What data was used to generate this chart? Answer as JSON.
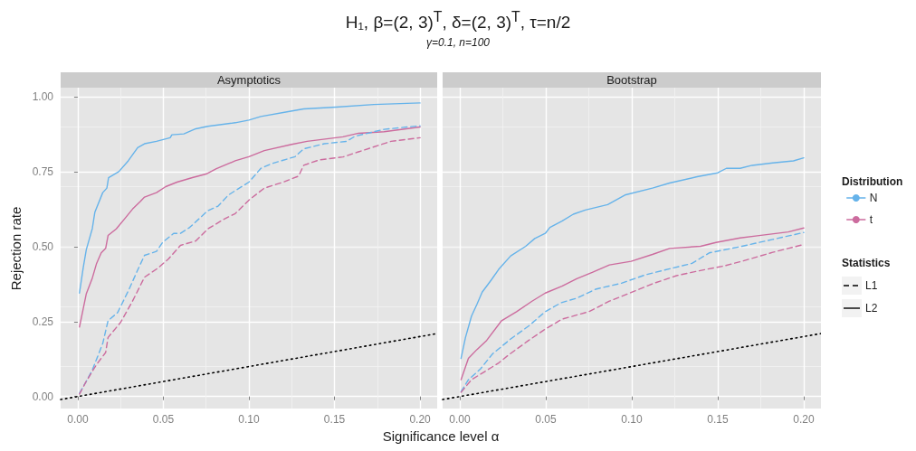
{
  "chart_data": [
    {
      "type": "line",
      "title": "Asymptotics",
      "xlabel": "Significance level α",
      "ylabel": "Rejection rate",
      "legend": "right",
      "legend_title": "Distribution",
      "annotations": [
        "H₁,  β=(2, 3)$^{T}$, δ=(2, 3)$^{T}$, τ=n/2",
        "γ=0.1, n=100",
        "Statistics",
        "L1",
        "L2"
      ],
      "xlim": [
        -0.01,
        0.21
      ],
      "ylim": [
        -0.04,
        1.03
      ],
      "xticks": [
        {
          "value": 0,
          "label": "0.00"
        },
        {
          "value": 0.05,
          "label": "0.05"
        },
        {
          "value": 0.1,
          "label": "0.10"
        },
        {
          "value": 0.15,
          "label": "0.15"
        },
        {
          "value": 0.2,
          "label": "0.20"
        }
      ],
      "yticks": [
        {
          "value": 0,
          "label": "0.00"
        },
        0.25,
        {
          "value": 0.5,
          "label": "0.50"
        },
        0.75,
        {
          "value": 1,
          "label": "1.00"
        }
      ],
      "grid": true,
      "marker": "none",
      "series": [
        {
          "name": "N",
          "color": "#66b3ea",
          "line_style": "solid",
          "x": [
            0.001,
            0.0032,
            0.005,
            0.0085,
            0.01,
            0.0146,
            0.017,
            0.018,
            0.024,
            0.0295,
            0.035,
            0.039,
            0.046,
            0.054,
            0.055,
            0.062,
            0.069,
            0.076,
            0.092,
            0.1,
            0.107,
            0.123,
            0.132,
            0.151,
            0.173,
            0.2
          ],
          "values": [
            0.345,
            0.43,
            0.49,
            0.56,
            0.615,
            0.68,
            0.695,
            0.73,
            0.75,
            0.786,
            0.83,
            0.843,
            0.851,
            0.863,
            0.873,
            0.876,
            0.893,
            0.901,
            0.913,
            0.922,
            0.934,
            0.95,
            0.959,
            0.965,
            0.974,
            0.979
          ]
        },
        {
          "name": "t",
          "color": "#cc6c9e",
          "line_style": "solid",
          "x": [
            0.001,
            0.0023,
            0.005,
            0.0084,
            0.011,
            0.0137,
            0.0163,
            0.0177,
            0.0225,
            0.0277,
            0.032,
            0.0365,
            0.039,
            0.046,
            0.0514,
            0.058,
            0.067,
            0.075,
            0.081,
            0.092,
            0.1,
            0.109,
            0.125,
            0.134,
            0.155,
            0.164,
            0.179,
            0.2
          ],
          "values": [
            0.232,
            0.268,
            0.343,
            0.393,
            0.444,
            0.479,
            0.494,
            0.537,
            0.559,
            0.595,
            0.625,
            0.65,
            0.665,
            0.68,
            0.7,
            0.715,
            0.73,
            0.742,
            0.76,
            0.786,
            0.8,
            0.82,
            0.841,
            0.851,
            0.866,
            0.878,
            0.883,
            0.899
          ]
        },
        {
          "color": "#66b3ea",
          "line_style": "dashed",
          "x": [
            0.001,
            0.005,
            0.0084,
            0.0146,
            0.0177,
            0.0233,
            0.03,
            0.0347,
            0.039,
            0.046,
            0.0496,
            0.056,
            0.06,
            0.0654,
            0.076,
            0.082,
            0.088,
            0.1,
            0.107,
            0.113,
            0.127,
            0.132,
            0.144,
            0.157,
            0.162,
            0.179,
            0.2
          ],
          "values": [
            0.011,
            0.051,
            0.087,
            0.177,
            0.253,
            0.28,
            0.358,
            0.418,
            0.471,
            0.484,
            0.514,
            0.544,
            0.544,
            0.564,
            0.62,
            0.635,
            0.672,
            0.715,
            0.761,
            0.776,
            0.8,
            0.826,
            0.843,
            0.851,
            0.868,
            0.891,
            0.903
          ]
        },
        {
          "color": "#cc6c9e",
          "line_style": "dashed",
          "x": [
            0.001,
            0.005,
            0.011,
            0.0163,
            0.0177,
            0.025,
            0.032,
            0.039,
            0.047,
            0.053,
            0.06,
            0.069,
            0.076,
            0.085,
            0.092,
            0.1,
            0.109,
            0.12,
            0.129,
            0.132,
            0.141,
            0.155,
            0.164,
            0.183,
            0.2
          ],
          "values": [
            0.008,
            0.051,
            0.107,
            0.147,
            0.197,
            0.247,
            0.318,
            0.398,
            0.429,
            0.459,
            0.504,
            0.519,
            0.559,
            0.59,
            0.61,
            0.655,
            0.695,
            0.715,
            0.735,
            0.771,
            0.789,
            0.799,
            0.816,
            0.851,
            0.863
          ]
        },
        {
          "color": "#000000",
          "line_style": "dotted",
          "x": [
            -0.01,
            0.21
          ],
          "values": [
            -0.01,
            0.21
          ]
        }
      ]
    },
    {
      "type": "line",
      "title": "Bootstrap",
      "tick_labels": "x",
      "xlim": [
        -0.01,
        0.21
      ],
      "ylim": [
        -0.04,
        1.03
      ],
      "xticks": [
        {
          "value": 0,
          "label": "0.00"
        },
        {
          "value": 0.05,
          "label": "0.05"
        },
        {
          "value": 0.1,
          "label": "0.10"
        },
        {
          "value": 0.15,
          "label": "0.15"
        },
        {
          "value": 0.2,
          "label": "0.20"
        }
      ],
      "yticks": [
        0,
        0.25,
        0.5,
        0.75,
        1
      ],
      "grid": true,
      "marker": "none",
      "series": [
        {
          "color": "#66b3ea",
          "line_style": "solid",
          "x": [
            0.0007,
            0.0033,
            0.0068,
            0.01,
            0.013,
            0.0182,
            0.0226,
            0.0296,
            0.0383,
            0.0436,
            0.0497,
            0.0524,
            0.0594,
            0.066,
            0.073,
            0.086,
            0.096,
            0.112,
            0.122,
            0.138,
            0.15,
            0.155,
            0.163,
            0.17,
            0.182,
            0.194,
            0.2
          ],
          "values": [
            0.127,
            0.197,
            0.268,
            0.308,
            0.348,
            0.388,
            0.424,
            0.469,
            0.501,
            0.527,
            0.544,
            0.564,
            0.585,
            0.608,
            0.622,
            0.64,
            0.672,
            0.695,
            0.712,
            0.733,
            0.746,
            0.761,
            0.761,
            0.771,
            0.779,
            0.786,
            0.796
          ]
        },
        {
          "color": "#cc6c9e",
          "line_style": "solid",
          "x": [
            0.0007,
            0.005,
            0.01,
            0.0156,
            0.0243,
            0.033,
            0.042,
            0.0497,
            0.0594,
            0.068,
            0.077,
            0.087,
            0.0996,
            0.112,
            0.122,
            0.14,
            0.149,
            0.163,
            0.173,
            0.191,
            0.2
          ],
          "values": [
            0.056,
            0.127,
            0.157,
            0.187,
            0.253,
            0.283,
            0.318,
            0.345,
            0.368,
            0.393,
            0.414,
            0.439,
            0.451,
            0.474,
            0.494,
            0.501,
            0.514,
            0.529,
            0.536,
            0.549,
            0.562
          ]
        },
        {
          "color": "#66b3ea",
          "line_style": "dashed",
          "x": [
            0.0007,
            0.005,
            0.012,
            0.019,
            0.0296,
            0.04,
            0.0497,
            0.059,
            0.068,
            0.079,
            0.094,
            0.108,
            0.122,
            0.135,
            0.145,
            0.164,
            0.182,
            0.2
          ],
          "values": [
            0.016,
            0.056,
            0.092,
            0.142,
            0.192,
            0.235,
            0.283,
            0.313,
            0.328,
            0.358,
            0.378,
            0.406,
            0.426,
            0.444,
            0.479,
            0.501,
            0.524,
            0.547
          ]
        },
        {
          "color": "#cc6c9e",
          "line_style": "dashed",
          "x": [
            0.0007,
            0.0068,
            0.0156,
            0.0226,
            0.028,
            0.04,
            0.0489,
            0.0594,
            0.075,
            0.087,
            0.098,
            0.112,
            0.126,
            0.138,
            0.154,
            0.164,
            0.182,
            0.2
          ],
          "values": [
            0.014,
            0.056,
            0.087,
            0.112,
            0.137,
            0.187,
            0.222,
            0.258,
            0.283,
            0.318,
            0.343,
            0.376,
            0.403,
            0.418,
            0.436,
            0.451,
            0.481,
            0.507
          ]
        },
        {
          "color": "#000000",
          "line_style": "dotted",
          "x": [
            -0.01,
            0.21
          ],
          "values": [
            -0.01,
            0.21
          ]
        }
      ]
    }
  ]
}
